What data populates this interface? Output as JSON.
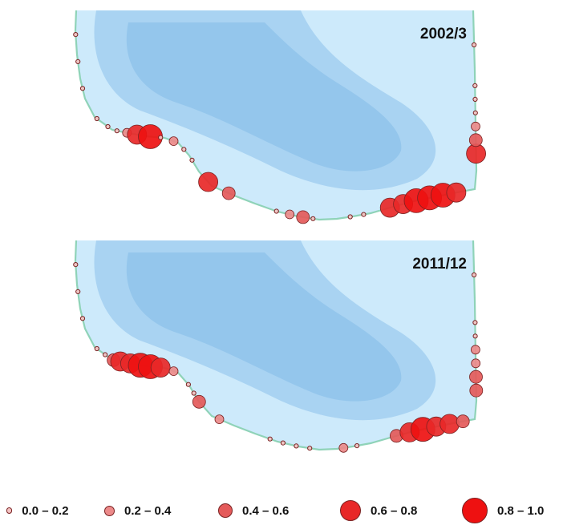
{
  "panels": [
    {
      "id": "top",
      "label": "2002/3",
      "sites": [
        {
          "along": 0.02,
          "cls": 0
        },
        {
          "along": 0.06,
          "cls": 0
        },
        {
          "along": 0.1,
          "cls": 0
        },
        {
          "along": 0.15,
          "cls": 0
        },
        {
          "along": 0.17,
          "cls": 0
        },
        {
          "along": 0.185,
          "cls": 0
        },
        {
          "along": 0.2,
          "cls": 1
        },
        {
          "along": 0.215,
          "cls": 3
        },
        {
          "along": 0.235,
          "cls": 4
        },
        {
          "along": 0.25,
          "cls": 0
        },
        {
          "along": 0.27,
          "cls": 1
        },
        {
          "along": 0.29,
          "cls": 0
        },
        {
          "along": 0.31,
          "cls": 0
        },
        {
          "along": 0.35,
          "cls": 3
        },
        {
          "along": 0.385,
          "cls": 2
        },
        {
          "along": 0.46,
          "cls": 0
        },
        {
          "along": 0.48,
          "cls": 1
        },
        {
          "along": 0.5,
          "cls": 2
        },
        {
          "along": 0.515,
          "cls": 0
        },
        {
          "along": 0.57,
          "cls": 0
        },
        {
          "along": 0.59,
          "cls": 0
        },
        {
          "along": 0.63,
          "cls": 3
        },
        {
          "along": 0.65,
          "cls": 3
        },
        {
          "along": 0.67,
          "cls": 4
        },
        {
          "along": 0.69,
          "cls": 4
        },
        {
          "along": 0.71,
          "cls": 4
        },
        {
          "along": 0.73,
          "cls": 3
        },
        {
          "along": 0.81,
          "cls": 3
        },
        {
          "along": 0.83,
          "cls": 2
        },
        {
          "along": 0.85,
          "cls": 1
        },
        {
          "along": 0.87,
          "cls": 0
        },
        {
          "along": 0.89,
          "cls": 0
        },
        {
          "along": 0.91,
          "cls": 0
        },
        {
          "along": 0.97,
          "cls": 0
        }
      ]
    },
    {
      "id": "bottom",
      "label": "2011/12",
      "sites": [
        {
          "along": 0.02,
          "cls": 0
        },
        {
          "along": 0.06,
          "cls": 0
        },
        {
          "along": 0.1,
          "cls": 0
        },
        {
          "along": 0.15,
          "cls": 0
        },
        {
          "along": 0.165,
          "cls": 0
        },
        {
          "along": 0.18,
          "cls": 2
        },
        {
          "along": 0.19,
          "cls": 3
        },
        {
          "along": 0.205,
          "cls": 3
        },
        {
          "along": 0.22,
          "cls": 4
        },
        {
          "along": 0.235,
          "cls": 4
        },
        {
          "along": 0.25,
          "cls": 3
        },
        {
          "along": 0.27,
          "cls": 1
        },
        {
          "along": 0.3,
          "cls": 0
        },
        {
          "along": 0.315,
          "cls": 0
        },
        {
          "along": 0.33,
          "cls": 2
        },
        {
          "along": 0.37,
          "cls": 1
        },
        {
          "along": 0.45,
          "cls": 0
        },
        {
          "along": 0.47,
          "cls": 0
        },
        {
          "along": 0.49,
          "cls": 0
        },
        {
          "along": 0.51,
          "cls": 0
        },
        {
          "along": 0.56,
          "cls": 1
        },
        {
          "along": 0.58,
          "cls": 0
        },
        {
          "along": 0.64,
          "cls": 2
        },
        {
          "along": 0.66,
          "cls": 3
        },
        {
          "along": 0.68,
          "cls": 4
        },
        {
          "along": 0.7,
          "cls": 3
        },
        {
          "along": 0.72,
          "cls": 3
        },
        {
          "along": 0.74,
          "cls": 2
        },
        {
          "along": 0.8,
          "cls": 2
        },
        {
          "along": 0.82,
          "cls": 2
        },
        {
          "along": 0.84,
          "cls": 1
        },
        {
          "along": 0.86,
          "cls": 1
        },
        {
          "along": 0.88,
          "cls": 0
        },
        {
          "along": 0.9,
          "cls": 0
        },
        {
          "along": 0.97,
          "cls": 0
        }
      ]
    }
  ],
  "legend": {
    "items": [
      {
        "label": "0.0 – 0.2",
        "cls": 0
      },
      {
        "label": "0.2 – 0.4",
        "cls": 1
      },
      {
        "label": "0.4 – 0.6",
        "cls": 2
      },
      {
        "label": "0.6 – 0.8",
        "cls": 3
      },
      {
        "label": "0.8 – 1.0",
        "cls": 4
      }
    ]
  },
  "colors": {
    "sea_outer": "#cdeafb",
    "sea_mid": "#a9d3f2",
    "sea_deep": "#8cc0ea",
    "coast_line": "#8fd3b8",
    "marker_classes": [
      "#f4c3c3",
      "#ec8a8a",
      "#e45a5a",
      "#e82828",
      "#ee1111"
    ],
    "marker_stroke": "#7a2222"
  }
}
